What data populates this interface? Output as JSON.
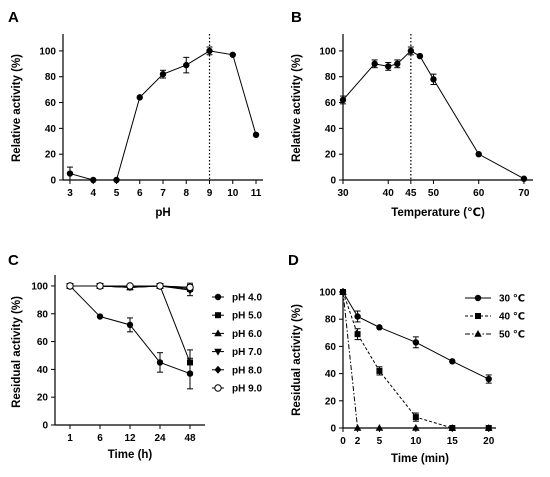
{
  "chart_data": [
    {
      "panel": "A",
      "type": "line",
      "xlabel": "pH",
      "ylabel": "Relative activity (%)",
      "xscale": "categorical",
      "xticks": [
        "3",
        "4",
        "5",
        "6",
        "7",
        "8",
        "9",
        "10",
        "11"
      ],
      "ylim": [
        0,
        110
      ],
      "yticks": [
        "0",
        "20",
        "40",
        "60",
        "80",
        "100"
      ],
      "reference_line": {
        "x": "9",
        "style": "dotted"
      },
      "series": [
        {
          "x": [
            "3",
            "4",
            "5",
            "6",
            "7",
            "8",
            "9",
            "10",
            "11"
          ],
          "values": [
            5,
            0,
            0,
            64,
            82,
            89,
            100,
            97,
            35
          ],
          "errors": [
            5,
            1,
            1,
            1,
            3,
            6,
            3,
            1,
            1
          ],
          "marker": "circle-filled"
        }
      ]
    },
    {
      "panel": "B",
      "type": "line",
      "xlabel": "Temperature (℃)",
      "ylabel": "Relative activity (%)",
      "xlim": [
        30,
        72
      ],
      "xticks": [
        "30",
        "40",
        "45",
        "50",
        "60",
        "70"
      ],
      "ylim": [
        0,
        110
      ],
      "yticks": [
        "0",
        "20",
        "40",
        "60",
        "80",
        "100"
      ],
      "reference_line": {
        "x": 45,
        "style": "dotted"
      },
      "series": [
        {
          "x": [
            30,
            37,
            40,
            42,
            45,
            47,
            50,
            60,
            70
          ],
          "values": [
            62,
            90,
            88,
            90,
            100,
            96,
            78,
            20,
            1
          ],
          "errors": [
            3,
            3,
            3,
            3,
            3,
            1,
            4,
            1,
            1
          ],
          "marker": "circle-filled"
        }
      ]
    },
    {
      "panel": "C",
      "type": "line",
      "xlabel": "Time (h)",
      "ylabel": "Residual activity (%)",
      "xscale": "categorical",
      "xticks": [
        "1",
        "6",
        "12",
        "24",
        "48"
      ],
      "ylim": [
        0,
        100
      ],
      "yticks": [
        "0",
        "20",
        "40",
        "60",
        "80",
        "100"
      ],
      "legend_position": "right",
      "series": [
        {
          "name": "pH 4.0",
          "marker": "circle-filled",
          "values": [
            100,
            78,
            72,
            45,
            37
          ],
          "errors": [
            1,
            1,
            5,
            7,
            11
          ]
        },
        {
          "name": "pH 5.0",
          "marker": "square-filled",
          "values": [
            100,
            100,
            99,
            100,
            45
          ],
          "errors": [
            1,
            1,
            1,
            1,
            9
          ]
        },
        {
          "name": "pH 6.0",
          "marker": "triangle-up-filled",
          "values": [
            100,
            100,
            99,
            100,
            99
          ],
          "errors": [
            1,
            1,
            1,
            1,
            1
          ]
        },
        {
          "name": "pH 7.0",
          "marker": "triangle-down-filled",
          "values": [
            100,
            100,
            99,
            100,
            98
          ],
          "errors": [
            1,
            1,
            1,
            1,
            2
          ]
        },
        {
          "name": "pH 8.0",
          "marker": "diamond-filled",
          "values": [
            100,
            100,
            100,
            100,
            97
          ],
          "errors": [
            1,
            1,
            1,
            1,
            4
          ]
        },
        {
          "name": "pH 9.0",
          "marker": "circle-open",
          "values": [
            100,
            100,
            100,
            100,
            99
          ],
          "errors": [
            1,
            1,
            1,
            1,
            3
          ]
        }
      ]
    },
    {
      "panel": "D",
      "type": "line",
      "xlabel": "Time (min)",
      "ylabel": "Residual activity (%)",
      "xlim": [
        0,
        21
      ],
      "xticks": [
        "0",
        "2",
        "5",
        "10",
        "15",
        "20"
      ],
      "ylim": [
        0,
        100
      ],
      "yticks": [
        "0",
        "20",
        "40",
        "60",
        "80",
        "100"
      ],
      "legend_position": "top-right",
      "series": [
        {
          "name": "30 ℃",
          "marker": "circle-filled",
          "line": "solid",
          "x": [
            0,
            2,
            5,
            10,
            15,
            20
          ],
          "values": [
            100,
            82,
            74,
            63,
            49,
            36
          ],
          "errors": [
            1,
            4,
            1,
            4,
            1,
            3
          ]
        },
        {
          "name": "40 ℃",
          "marker": "square-filled",
          "line": "dashed",
          "x": [
            0,
            2,
            5,
            10,
            15,
            20
          ],
          "values": [
            100,
            69,
            42,
            8,
            0,
            0
          ],
          "errors": [
            1,
            4,
            3,
            3,
            1,
            1
          ]
        },
        {
          "name": "50 ℃",
          "marker": "triangle-up-filled",
          "line": "dash-dot",
          "x": [
            0,
            2,
            5,
            10,
            15,
            20
          ],
          "values": [
            100,
            0,
            0,
            0,
            0,
            0
          ],
          "errors": [
            1,
            1,
            1,
            1,
            1,
            1
          ]
        }
      ]
    }
  ]
}
